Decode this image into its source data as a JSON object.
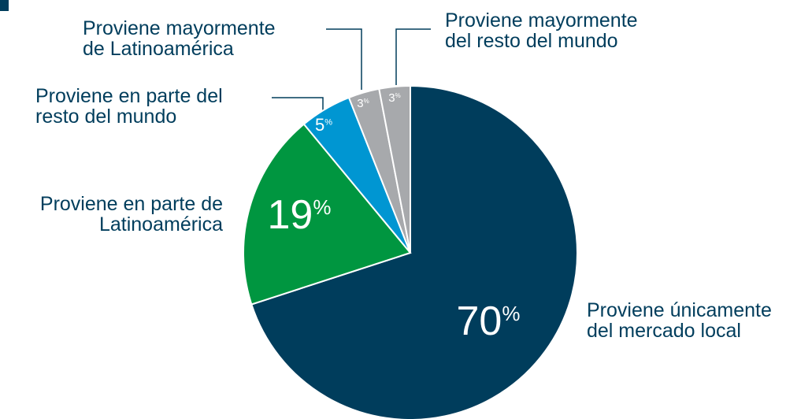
{
  "chart_data": {
    "type": "pie",
    "categories": [
      [
        "Proviene únicamente",
        "del mercado local"
      ],
      [
        "Proviene en parte de",
        "Latinoamérica"
      ],
      [
        "Proviene en parte del",
        "resto del mundo"
      ],
      [
        "Proviene mayormente",
        "de Latinoamérica"
      ],
      [
        "Proviene mayormente",
        "del resto del mundo"
      ]
    ],
    "values": [
      70,
      19,
      5,
      3,
      3
    ],
    "value_labels": [
      "70%",
      "19%",
      "5%",
      "3%",
      "3%"
    ],
    "colors": [
      "#003d5c",
      "#009640",
      "#0096d2",
      "#a7a9ac",
      "#a7a9ac"
    ]
  }
}
